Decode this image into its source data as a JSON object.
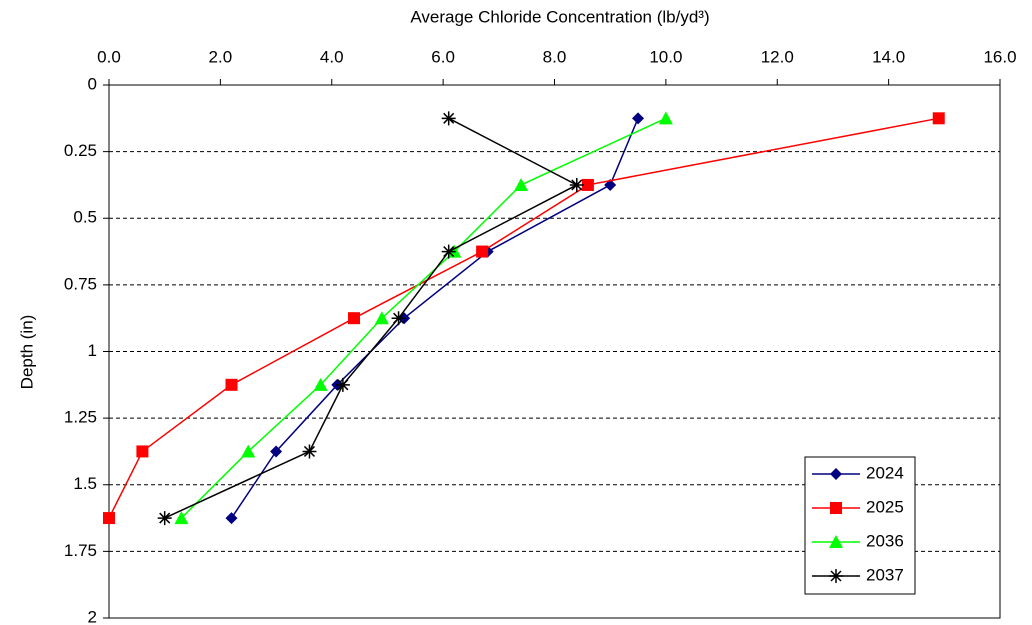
{
  "chart_data": {
    "type": "line",
    "x_label": "Average Chloride Concentration (lb/yd³)",
    "y_label": "Depth (in)",
    "y": [
      0.125,
      0.375,
      0.625,
      0.875,
      1.125,
      1.375,
      1.625
    ],
    "series": [
      {
        "name": "2024",
        "color": "#000080",
        "marker": "diamond",
        "x": [
          9.5,
          9.0,
          6.8,
          5.3,
          4.1,
          3.0,
          2.2
        ]
      },
      {
        "name": "2025",
        "color": "#ff0000",
        "marker": "square",
        "x": [
          14.9,
          8.6,
          6.7,
          4.4,
          2.2,
          0.6,
          0
        ]
      },
      {
        "name": "2036",
        "color": "#00ff00",
        "marker": "triangle",
        "x": [
          10.0,
          7.4,
          6.2,
          4.9,
          3.8,
          2.5,
          1.3
        ]
      },
      {
        "name": "2037",
        "color": "#000000",
        "marker": "star",
        "x": [
          6.1,
          8.4,
          6.1,
          5.2,
          4.2,
          3.6,
          1.0
        ]
      }
    ],
    "xlim": [
      0,
      16
    ],
    "xticks": [
      {
        "value": 0,
        "label": "0.0"
      },
      {
        "value": 2,
        "label": "2.0"
      },
      {
        "value": 4,
        "label": "4.0"
      },
      {
        "value": 6,
        "label": "6.0"
      },
      {
        "value": 8,
        "label": "8.0"
      },
      {
        "value": 10,
        "label": "10.0"
      },
      {
        "value": 12,
        "label": "12.0"
      },
      {
        "value": 14,
        "label": "14.0"
      },
      {
        "value": 16,
        "label": "16.0"
      }
    ],
    "ylim": [
      0,
      2
    ],
    "y_inverted": true,
    "yticks": [
      0,
      0.25,
      0.5,
      0.75,
      1,
      1.25,
      1.5,
      1.75,
      2
    ],
    "grid": true,
    "legend": "lower right"
  }
}
